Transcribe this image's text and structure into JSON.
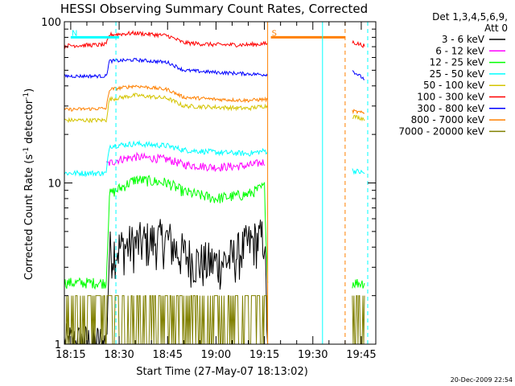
{
  "chart_data": {
    "type": "line",
    "title": "HESSI Observing Summary Count Rates, Corrected",
    "xlabel": "Start Time (27-May-07 18:13:02)",
    "ylabel_main": "Corrected Count Rate (s",
    "ylabel_sup1": "-1",
    "ylabel_mid": " detector",
    "ylabel_sup2": "-1",
    "ylabel_end": ")",
    "timestamp": "20-Dec-2009 22:54",
    "y_scale": "log",
    "ylim": [
      1,
      100
    ],
    "xlim": [
      "18:13:02",
      "19:49:30"
    ],
    "x_ticks": [
      "18:15",
      "18:30",
      "18:45",
      "19:00",
      "19:15",
      "19:30",
      "19:45"
    ],
    "y_ticks": [
      "1",
      "10",
      "100"
    ],
    "legend": {
      "placement": "right",
      "header": [
        "Det 1,3,4,5,6,9,",
        "Att 0"
      ],
      "entries": [
        {
          "label": "3 - 6 keV",
          "color": "#000000"
        },
        {
          "label": "6 - 12 keV",
          "color": "#ff00ff"
        },
        {
          "label": "12 - 25 keV",
          "color": "#00ff00"
        },
        {
          "label": "25 - 50 keV",
          "color": "#00ffff"
        },
        {
          "label": "50 - 100 keV",
          "color": "#d4c400"
        },
        {
          "label": "100 - 300 keV",
          "color": "#ff0000"
        },
        {
          "label": "300 - 800 keV",
          "color": "#0000ff"
        },
        {
          "label": "800 - 7000 keV",
          "color": "#ff8000"
        },
        {
          "label": "7000 - 20000 keV",
          "color": "#808000"
        }
      ]
    },
    "flags": [
      {
        "label": "N",
        "color": "#00ffff",
        "start": "18:15",
        "end": "18:30"
      },
      {
        "label": "S",
        "color": "#ff8000",
        "start": "19:17",
        "end": "19:40"
      }
    ],
    "markers": [
      {
        "time": "18:29",
        "color": "#00ffff",
        "style": "dashed"
      },
      {
        "time": "19:16",
        "color": "#ff8000",
        "style": "solid"
      },
      {
        "time": "19:33",
        "color": "#00ffff",
        "style": "solid"
      },
      {
        "time": "19:40",
        "color": "#ff8000",
        "style": "dashed"
      },
      {
        "time": "19:47",
        "color": "#00ffff",
        "style": "dashed"
      }
    ],
    "series": [
      {
        "name": "3 - 6 keV",
        "color": "#000000",
        "noise": 0.35,
        "gaps": [
          [
            19.2667,
            19.6833
          ]
        ],
        "points": [
          [
            "18:13",
            1.0
          ],
          [
            "18:26",
            1.0
          ],
          [
            "18:27",
            3.8
          ],
          [
            "18:35",
            4.2
          ],
          [
            "18:45",
            4.5
          ],
          [
            "18:48",
            3.8
          ],
          [
            "18:55",
            3.2
          ],
          [
            "19:00",
            3.2
          ],
          [
            "19:05",
            3.4
          ],
          [
            "19:10",
            4.2
          ],
          [
            "19:15",
            4.6
          ],
          [
            "19:16",
            1.0
          ]
        ]
      },
      {
        "name": "6 - 12 keV",
        "color": "#ff00ff",
        "noise": 0.06,
        "gaps": [
          [
            19.2667,
            19.6833
          ]
        ],
        "points": [
          [
            "18:26",
            13.0
          ],
          [
            "18:30",
            14.0
          ],
          [
            "18:35",
            14.5
          ],
          [
            "18:45",
            14.0
          ],
          [
            "18:50",
            13.0
          ],
          [
            "19:00",
            12.5
          ],
          [
            "19:10",
            12.8
          ],
          [
            "19:15",
            13.5
          ]
        ]
      },
      {
        "name": "12 - 25 keV",
        "color": "#00ff00",
        "noise": 0.08,
        "gaps": [
          [
            19.2667,
            19.7
          ]
        ],
        "points": [
          [
            "18:13",
            2.4
          ],
          [
            "18:26",
            2.4
          ],
          [
            "18:27",
            8.5
          ],
          [
            "18:35",
            10.5
          ],
          [
            "18:45",
            10.0
          ],
          [
            "18:50",
            8.8
          ],
          [
            "19:00",
            8.0
          ],
          [
            "19:10",
            8.5
          ],
          [
            "19:15",
            9.5
          ],
          [
            "19:16",
            2.4
          ],
          [
            "19:42",
            2.4
          ],
          [
            "19:46",
            2.4
          ]
        ]
      },
      {
        "name": "25 - 50 keV",
        "color": "#00ffff",
        "noise": 0.04,
        "gaps": [
          [
            19.2667,
            19.7
          ]
        ],
        "points": [
          [
            "18:13",
            11.5
          ],
          [
            "18:26",
            11.5
          ],
          [
            "18:27",
            17.0
          ],
          [
            "18:35",
            17.5
          ],
          [
            "18:45",
            17.0
          ],
          [
            "18:50",
            16.0
          ],
          [
            "19:00",
            15.5
          ],
          [
            "19:10",
            15.2
          ],
          [
            "19:15",
            15.8
          ],
          [
            "19:42",
            12.0
          ],
          [
            "19:46",
            11.5
          ]
        ]
      },
      {
        "name": "50 - 100 keV",
        "color": "#d4c400",
        "noise": 0.03,
        "gaps": [
          [
            19.2667,
            19.7
          ]
        ],
        "points": [
          [
            "18:13",
            24.5
          ],
          [
            "18:26",
            24.5
          ],
          [
            "18:27",
            33.0
          ],
          [
            "18:35",
            35.0
          ],
          [
            "18:45",
            33.5
          ],
          [
            "18:50",
            30.0
          ],
          [
            "19:00",
            29.5
          ],
          [
            "19:10",
            29.0
          ],
          [
            "19:15",
            30.0
          ],
          [
            "19:42",
            26.0
          ],
          [
            "19:46",
            25.0
          ]
        ]
      },
      {
        "name": "100 - 300 keV",
        "color": "#ff0000",
        "noise": 0.03,
        "gaps": [
          [
            19.2667,
            19.7
          ]
        ],
        "points": [
          [
            "18:13",
            71.0
          ],
          [
            "18:26",
            72.0
          ],
          [
            "18:27",
            83.0
          ],
          [
            "18:35",
            85.0
          ],
          [
            "18:45",
            82.0
          ],
          [
            "18:50",
            74.0
          ],
          [
            "19:00",
            72.0
          ],
          [
            "19:10",
            72.0
          ],
          [
            "19:15",
            73.0
          ],
          [
            "19:42",
            75.0
          ],
          [
            "19:46",
            71.0
          ]
        ]
      },
      {
        "name": "300 - 800 keV",
        "color": "#0000ff",
        "noise": 0.025,
        "gaps": [
          [
            19.2667,
            19.7
          ]
        ],
        "points": [
          [
            "18:13",
            46.0
          ],
          [
            "18:26",
            46.0
          ],
          [
            "18:27",
            57.0
          ],
          [
            "18:35",
            58.0
          ],
          [
            "18:45",
            56.0
          ],
          [
            "18:50",
            50.0
          ],
          [
            "19:00",
            48.5
          ],
          [
            "19:10",
            47.5
          ],
          [
            "19:15",
            47.0
          ],
          [
            "19:42",
            50.0
          ],
          [
            "19:46",
            44.0
          ]
        ]
      },
      {
        "name": "800 - 7000 keV",
        "color": "#ff8000",
        "noise": 0.025,
        "gaps": [
          [
            19.2667,
            19.7
          ]
        ],
        "points": [
          [
            "18:13",
            28.5
          ],
          [
            "18:26",
            29.0
          ],
          [
            "18:27",
            38.0
          ],
          [
            "18:35",
            40.0
          ],
          [
            "18:45",
            38.0
          ],
          [
            "18:50",
            34.0
          ],
          [
            "19:00",
            33.0
          ],
          [
            "19:10",
            32.5
          ],
          [
            "19:15",
            33.0
          ],
          [
            "19:42",
            28.0
          ],
          [
            "19:46",
            27.0
          ]
        ]
      },
      {
        "name": "7000 - 20000 keV",
        "color": "#808000",
        "noise": 0.0,
        "spiky": true,
        "gaps": [
          [
            19.2667,
            19.7
          ]
        ],
        "points": [
          [
            "18:13",
            2.0
          ],
          [
            "19:15",
            2.0
          ],
          [
            "19:42",
            2.0
          ],
          [
            "19:46",
            2.0
          ]
        ]
      }
    ]
  }
}
